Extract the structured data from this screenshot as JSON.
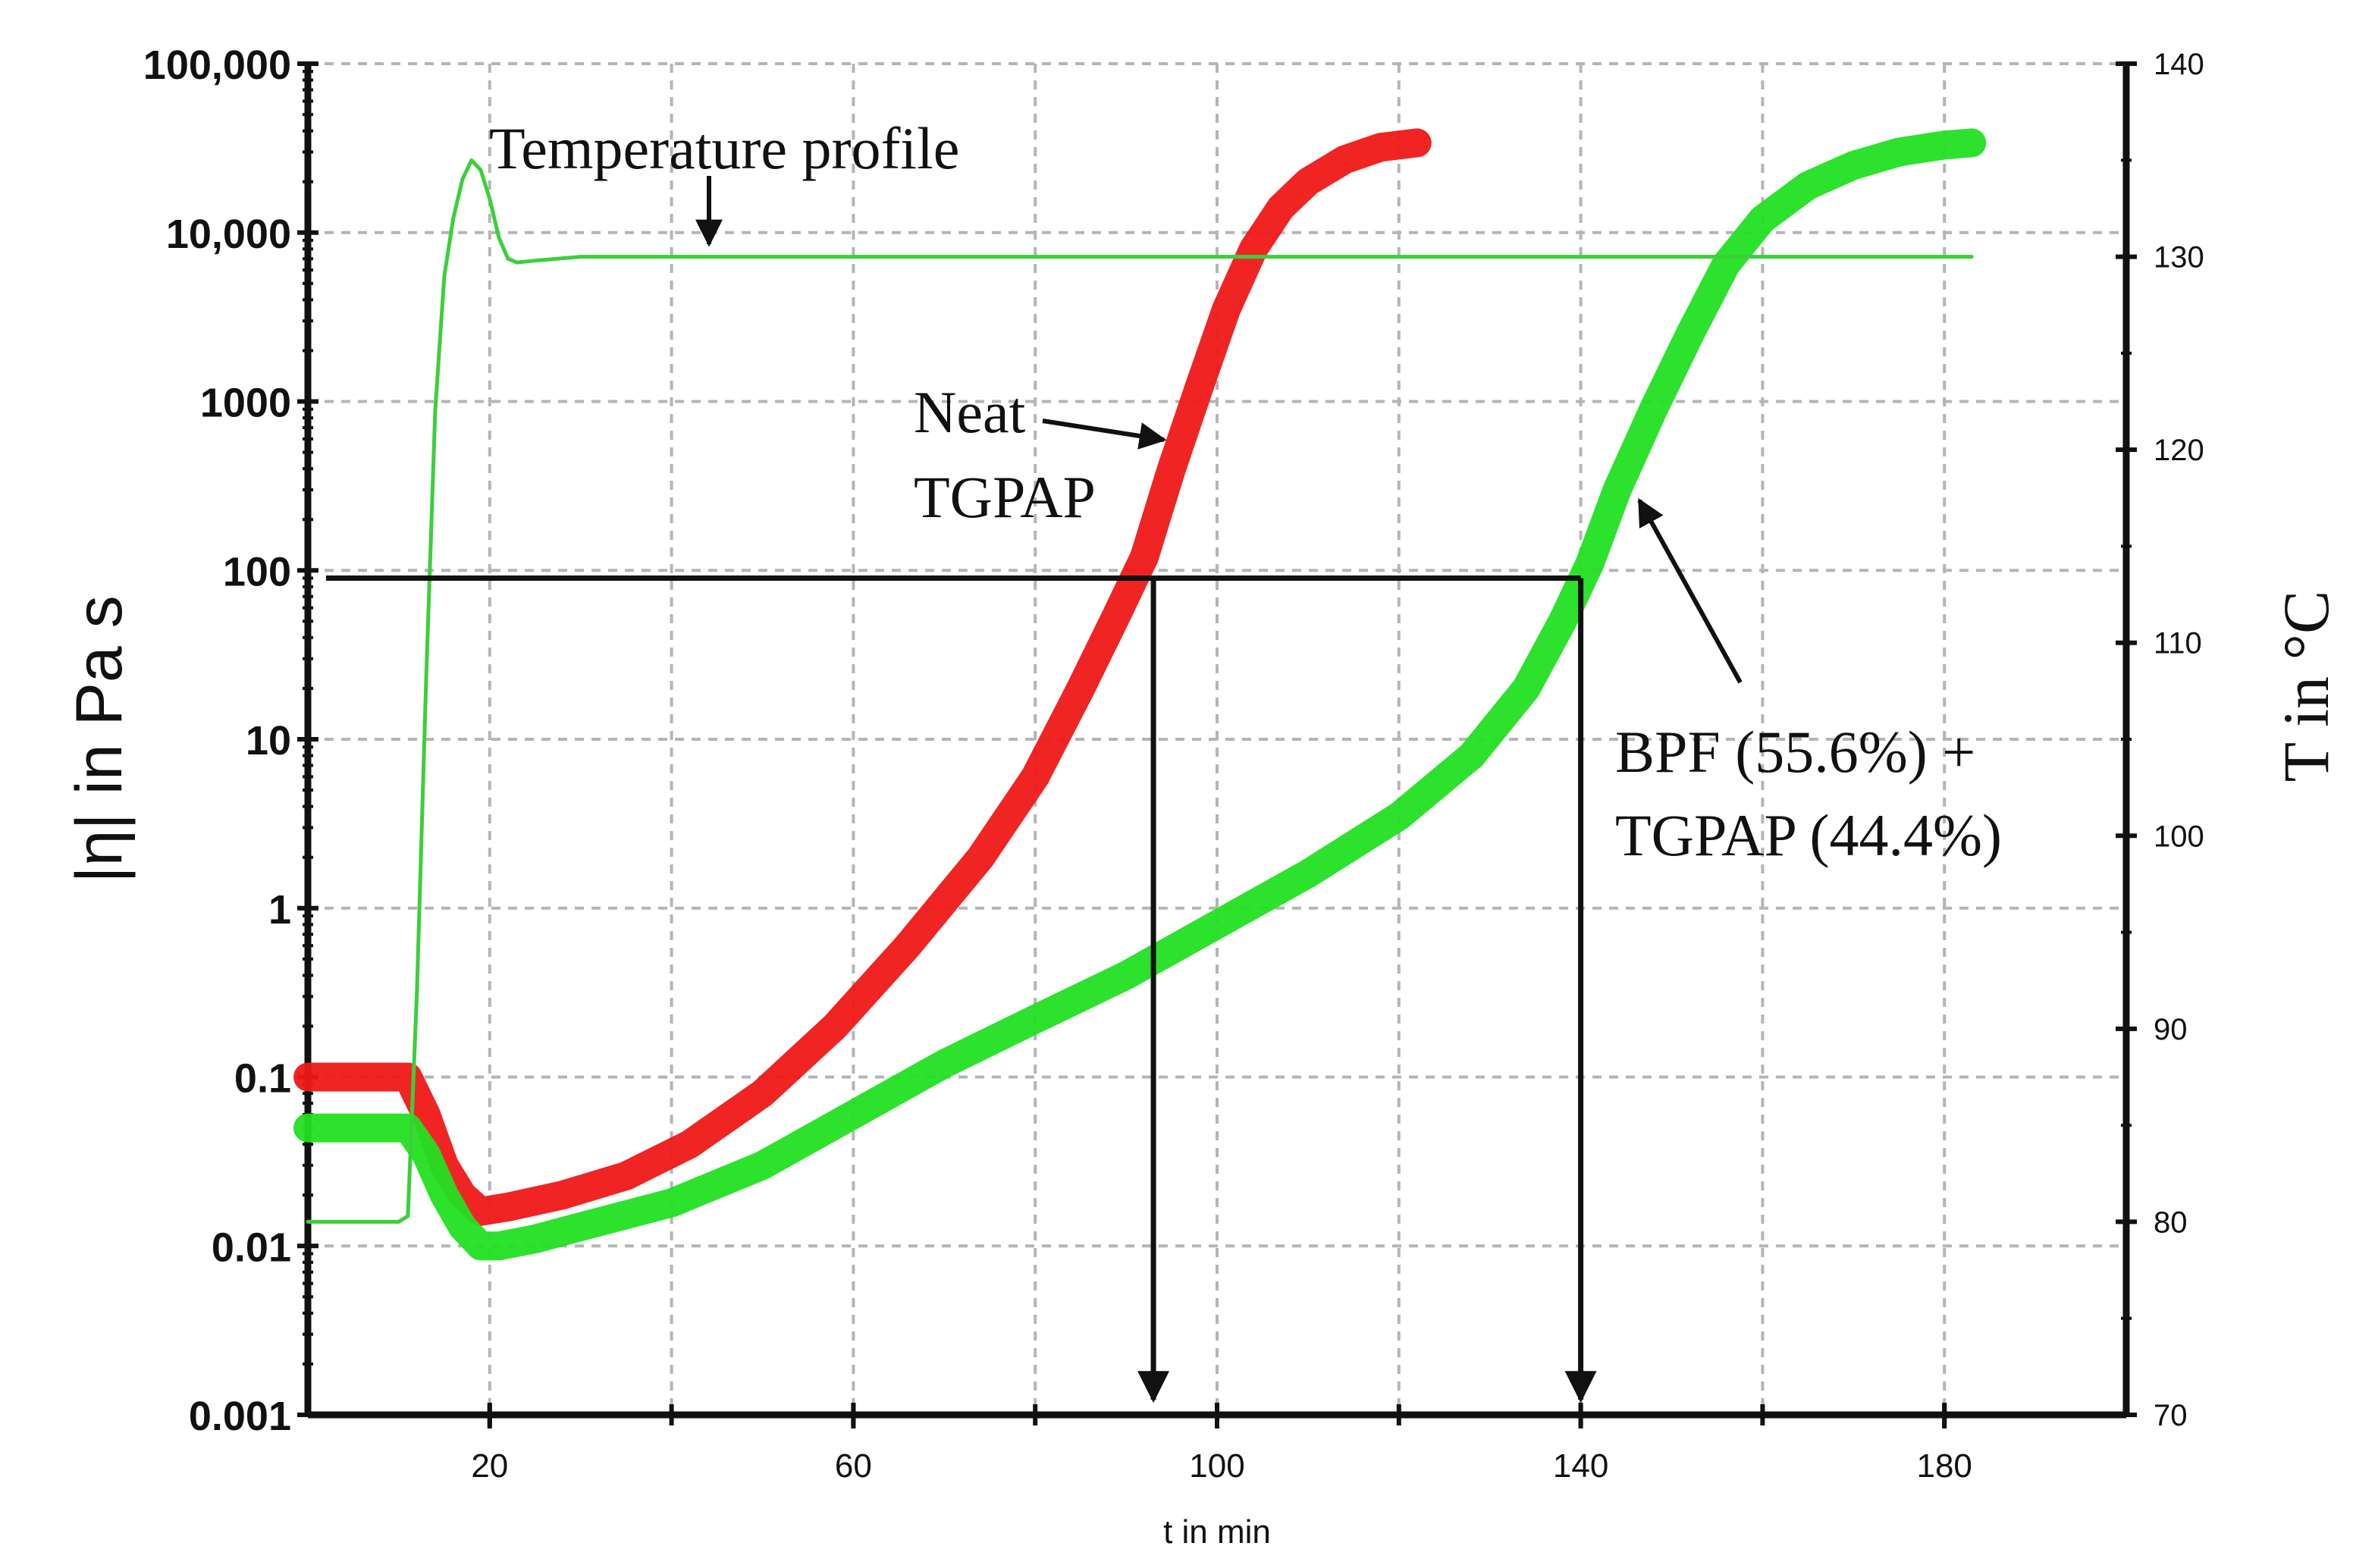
{
  "chart_data": {
    "type": "line",
    "xlabel": "t in min",
    "ylabel_left": "|η| in Pa s",
    "ylabel_right": "T in °C",
    "xlim": [
      0,
      200
    ],
    "ylim_left": [
      0.001,
      100000
    ],
    "ylim_right": [
      70,
      140
    ],
    "y_left_scale": "log",
    "grid": true,
    "x_ticks": [
      {
        "value": 20,
        "label": "20"
      },
      {
        "value": 60,
        "label": "60"
      },
      {
        "value": 100,
        "label": "100"
      },
      {
        "value": 140,
        "label": "140"
      },
      {
        "value": 180,
        "label": "180"
      }
    ],
    "y_left_ticks": [
      {
        "value": 0.001,
        "label": "0.001"
      },
      {
        "value": 0.01,
        "label": "0.01"
      },
      {
        "value": 0.1,
        "label": "0.1"
      },
      {
        "value": 1,
        "label": "1"
      },
      {
        "value": 10,
        "label": "10"
      },
      {
        "value": 100,
        "label": "100"
      },
      {
        "value": 1000,
        "label": "1000"
      },
      {
        "value": 10000,
        "label": "10,000"
      },
      {
        "value": 100000,
        "label": "100,000"
      }
    ],
    "y_right_ticks": [
      {
        "value": 70,
        "label": "70"
      },
      {
        "value": 80,
        "label": "80"
      },
      {
        "value": 90,
        "label": "90"
      },
      {
        "value": 100,
        "label": "100"
      },
      {
        "value": 110,
        "label": "110"
      },
      {
        "value": 120,
        "label": "120"
      },
      {
        "value": 130,
        "label": "130"
      },
      {
        "value": 140,
        "label": "140"
      }
    ],
    "series": [
      {
        "name": "Neat TGPAP",
        "axis": "left",
        "color": "#f01818",
        "x": [
          0,
          6,
          11,
          13,
          15,
          17,
          19,
          22,
          28,
          35,
          42,
          50,
          58,
          66,
          74,
          80,
          85,
          89,
          92,
          95,
          98,
          101,
          104,
          107,
          110,
          114,
          118,
          122
        ],
        "y": [
          0.1,
          0.1,
          0.1,
          0.06,
          0.03,
          0.02,
          0.016,
          0.017,
          0.02,
          0.026,
          0.04,
          0.08,
          0.2,
          0.6,
          2,
          6,
          20,
          55,
          120,
          400,
          1200,
          3500,
          8000,
          14000,
          20000,
          27000,
          32000,
          34000
        ]
      },
      {
        "name": "BPF (55.6%) + TGPAP (44.4%)",
        "axis": "left",
        "color": "#22e022",
        "x": [
          0,
          6,
          11,
          13,
          15,
          17,
          19,
          21,
          25,
          30,
          40,
          50,
          60,
          70,
          80,
          90,
          100,
          110,
          120,
          128,
          134,
          138,
          141,
          144,
          148,
          152,
          156,
          160,
          165,
          170,
          175,
          180,
          183
        ],
        "y": [
          0.05,
          0.05,
          0.05,
          0.035,
          0.02,
          0.013,
          0.01,
          0.01,
          0.011,
          0.013,
          0.018,
          0.03,
          0.06,
          0.12,
          0.22,
          0.4,
          0.8,
          1.6,
          3.5,
          8,
          20,
          50,
          110,
          300,
          900,
          2500,
          6500,
          12000,
          19000,
          25000,
          30000,
          33000,
          34000
        ]
      },
      {
        "name": "Temperature profile",
        "axis": "right",
        "color": "#3ccf3c",
        "x": [
          0,
          6,
          10,
          11,
          12,
          13,
          14,
          15,
          16,
          17,
          18,
          19,
          20,
          21,
          22,
          23,
          25,
          30,
          40,
          50,
          60,
          80,
          100,
          120,
          140,
          160,
          183
        ],
        "y": [
          80,
          80,
          80,
          80.3,
          92,
          108,
          122,
          129,
          132,
          134,
          135,
          134.5,
          133,
          131,
          129.9,
          129.7,
          129.8,
          130,
          130,
          130,
          130,
          130,
          130,
          130,
          130,
          130,
          130
        ]
      }
    ],
    "reference_lines": {
      "horizontal_viscosity": 90,
      "horizontal_x_range": [
        2,
        140
      ],
      "vertical_arrows": [
        {
          "x": 93,
          "from_viscosity": 90,
          "to_viscosity": 0.001
        },
        {
          "x": 140,
          "from_viscosity": 90,
          "to_viscosity": 0.001
        }
      ]
    },
    "annotations": [
      {
        "id": "temperature",
        "text": "Temperature profile",
        "points_to": {
          "x": 44,
          "y_temp": 130
        }
      },
      {
        "id": "neat",
        "lines": [
          "Neat",
          "TGPAP"
        ],
        "points_to": {
          "x": 95,
          "y_visc": 400
        }
      },
      {
        "id": "bpf",
        "lines": [
          "BPF (55.6%) +",
          "TGPAP (44.4%)"
        ],
        "points_to": {
          "x": 145,
          "y_visc": 400
        }
      }
    ]
  }
}
